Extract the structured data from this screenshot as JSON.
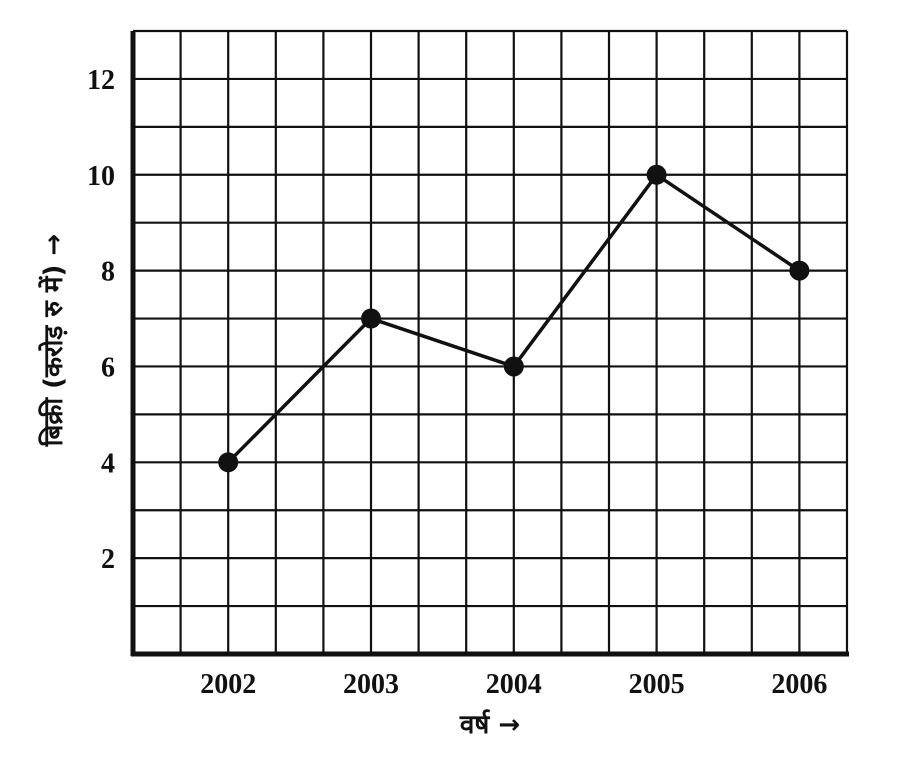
{
  "chart_data": {
    "type": "line",
    "title": "",
    "xlabel": "वर्ष →",
    "ylabel": "बिक्री (करोड़ रु में) →",
    "categories": [
      "2002",
      "2003",
      "2004",
      "2005",
      "2006"
    ],
    "series": [
      {
        "values": [
          4,
          7,
          6,
          10,
          8
        ]
      }
    ],
    "yticks": [
      2,
      4,
      6,
      8,
      10,
      12
    ],
    "ylim": [
      0,
      13
    ],
    "grid": true,
    "legend": "none",
    "marker": "circle",
    "line_color": "#111111"
  }
}
